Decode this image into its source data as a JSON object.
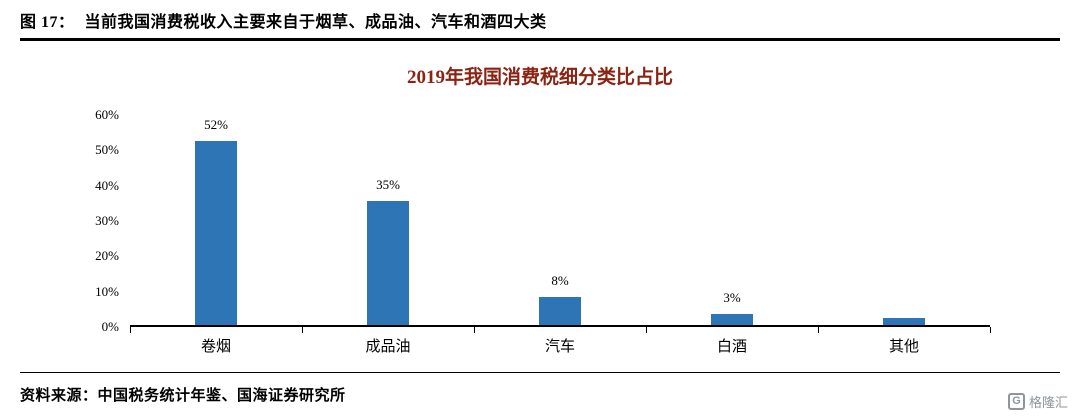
{
  "figure_header": {
    "label": "图 17：",
    "title": "当前我国消费税收入主要来自于烟草、成品油、汽车和酒四大类"
  },
  "chart_data": {
    "type": "bar",
    "title": "2019年我国消费税细分类比占比",
    "title_color": "#8B2313",
    "categories": [
      "卷烟",
      "成品油",
      "汽车",
      "白酒",
      "其他"
    ],
    "values": [
      52,
      35,
      8,
      3,
      2
    ],
    "data_labels": [
      "52%",
      "35%",
      "8%",
      "3%",
      ""
    ],
    "xlabel": "",
    "ylabel": "",
    "ylim": [
      0,
      60
    ],
    "ytick_labels": [
      "0%",
      "10%",
      "20%",
      "30%",
      "40%",
      "50%",
      "60%"
    ],
    "bar_color": "#2E75B6",
    "axis_color": "#000000",
    "grid": false,
    "legend": "none"
  },
  "footer": {
    "source": "资料来源：中国税务统计年鉴、国海证券研究所"
  },
  "logo": {
    "icon": "G",
    "text": "格隆汇"
  }
}
